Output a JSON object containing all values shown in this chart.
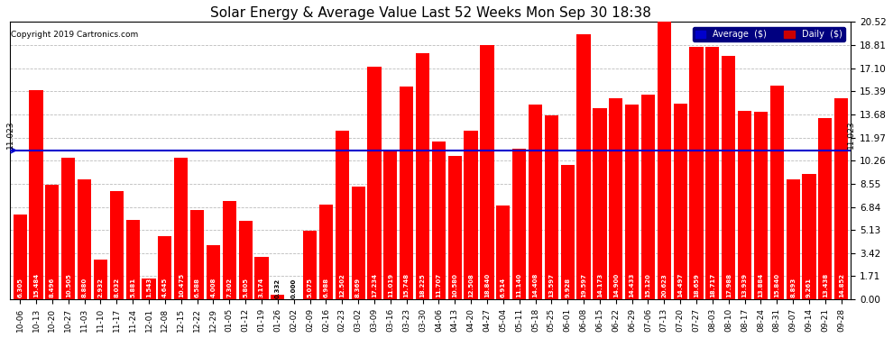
{
  "title": "Solar Energy & Average Value Last 52 Weeks Mon Sep 30 18:38",
  "copyright": "Copyright 2019 Cartronics.com",
  "average_line": 11.023,
  "average_label": "11.023",
  "bar_color": "#ff0000",
  "average_line_color": "#0000cd",
  "background_color": "#ffffff",
  "plot_bg_color": "#ffffff",
  "grid_color": "#bbbbbb",
  "yticks": [
    0.0,
    1.71,
    3.42,
    5.13,
    6.84,
    8.55,
    10.26,
    11.97,
    13.68,
    15.39,
    17.1,
    18.81,
    20.52
  ],
  "legend_avg_color": "#0000cc",
  "legend_daily_color": "#cc0000",
  "categories": [
    "10-06",
    "10-13",
    "10-20",
    "10-27",
    "11-03",
    "11-10",
    "11-17",
    "11-24",
    "12-01",
    "12-08",
    "12-15",
    "12-22",
    "12-29",
    "01-05",
    "01-12",
    "01-19",
    "01-26",
    "02-02",
    "02-09",
    "02-16",
    "02-23",
    "03-02",
    "03-09",
    "03-16",
    "03-23",
    "03-30",
    "04-06",
    "04-13",
    "04-20",
    "04-27",
    "05-04",
    "05-11",
    "05-18",
    "05-25",
    "06-01",
    "06-08",
    "06-15",
    "06-22",
    "06-29",
    "07-06",
    "07-13",
    "07-20",
    "07-27",
    "08-03",
    "08-10",
    "08-17",
    "08-24",
    "08-31",
    "09-07",
    "09-14",
    "09-21",
    "09-28"
  ],
  "values": [
    6.305,
    15.484,
    8.496,
    10.505,
    8.88,
    2.932,
    8.032,
    5.881,
    1.543,
    4.645,
    10.475,
    6.588,
    4.008,
    7.302,
    5.805,
    3.174,
    0.332,
    0.0,
    5.075,
    6.988,
    12.502,
    8.369,
    17.234,
    11.019,
    15.748,
    18.225,
    11.707,
    10.58,
    12.508,
    18.84,
    6.914,
    11.14,
    14.408,
    13.597,
    9.928,
    19.597,
    14.173,
    14.9,
    14.433,
    15.12,
    20.623,
    14.497,
    18.659,
    18.717,
    17.988,
    13.939,
    13.884,
    15.84,
    8.893,
    9.261,
    13.438,
    14.852
  ]
}
